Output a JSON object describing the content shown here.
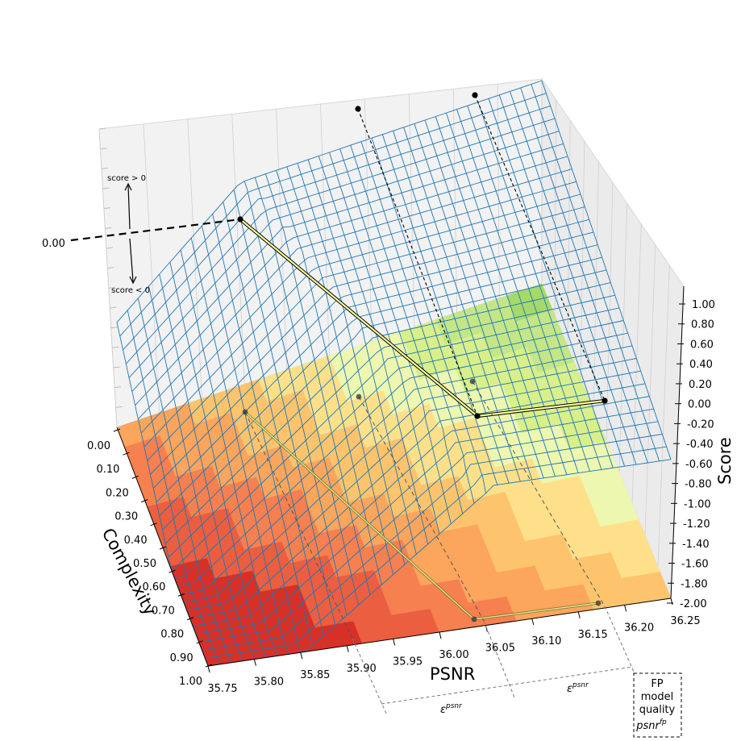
{
  "chart_data": {
    "type": "surface",
    "title": "",
    "xlabel": "PSNR",
    "ylabel": "Complexity",
    "zlabel": "Score",
    "x_ticks": [
      "35.75",
      "35.80",
      "35.85",
      "35.90",
      "35.95",
      "36.00",
      "36.05",
      "36.10",
      "36.15",
      "36.20",
      "36.25"
    ],
    "y_ticks": [
      "0.00",
      "0.10",
      "0.20",
      "0.30",
      "0.40",
      "0.50",
      "0.60",
      "0.70",
      "0.80",
      "0.90",
      "1.00"
    ],
    "z_ticks": [
      "1.00",
      "0.80",
      "0.60",
      "0.40",
      "0.20",
      "0.00",
      "-0.20",
      "-0.40",
      "-0.60",
      "-0.80",
      "-1.00",
      "-1.20",
      "-1.40",
      "-1.60",
      "-1.80",
      "-2.00"
    ],
    "xlim": [
      35.75,
      36.25
    ],
    "ylim": [
      0.0,
      1.0
    ],
    "zlim": [
      -2.0,
      1.0
    ],
    "zero_label": "0.00",
    "annotations": {
      "score_positive": "score > 0",
      "score_negative": "score < 0",
      "epsilon": "ε",
      "epsilon_superscript": "psnr",
      "fp_box_lines": [
        "FP",
        "model",
        "quality"
      ],
      "fp_psnr": "psnr",
      "fp_superscript": "fp"
    },
    "path_points": [
      {
        "psnr": 35.9,
        "complexity": 0.0,
        "score": 0.0
      },
      {
        "psnr": 36.05,
        "complexity": 1.0,
        "score": 0.0
      },
      {
        "psnr": 36.2,
        "complexity": 1.0,
        "score": 0.0
      }
    ],
    "colors": {
      "mesh": "#1f77b4",
      "path": "#ffff99",
      "floor_low": "#d73027",
      "floor_high": "#a6d96a"
    }
  }
}
